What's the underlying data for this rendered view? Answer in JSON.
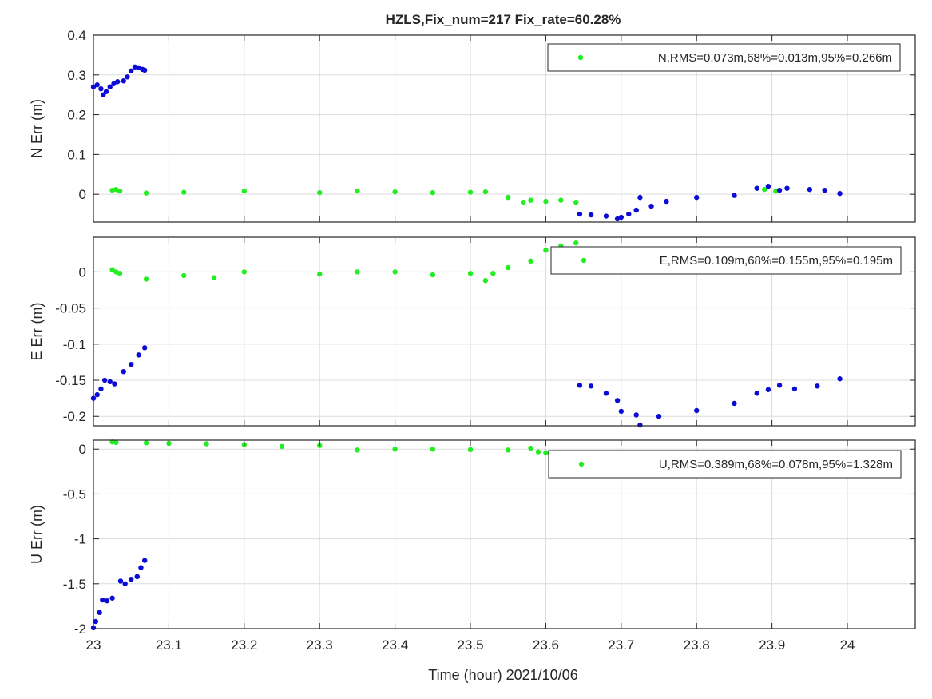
{
  "title": "HZLS,Fix_num=217 Fix_rate=60.28%",
  "xlabel": "Time (hour)  2021/10/06",
  "colors": {
    "fix": "#22ee22",
    "float": "#0b0bd6",
    "grid": "#dcdcdc",
    "axis": "#262626"
  },
  "chart_data": [
    {
      "type": "scatter",
      "name": "N",
      "ylabel": "N Err (m)",
      "legend": "N,RMS=0.073m,68%=0.013m,95%=0.266m",
      "legend_position": "top-right",
      "xlim": [
        23,
        24.09
      ],
      "ylim": [
        -0.07,
        0.4
      ],
      "yticks": [
        0,
        0.1,
        0.2,
        0.3,
        0.4
      ],
      "ytick_labels": [
        "0",
        "0.1",
        "0.2",
        "0.3",
        "0.4"
      ],
      "grid": true,
      "series": [
        {
          "status": "fix",
          "color": "#22ee22",
          "points": [
            [
              23.025,
              0.01
            ],
            [
              23.03,
              0.012
            ],
            [
              23.035,
              0.008
            ],
            [
              23.07,
              0.003
            ],
            [
              23.12,
              0.005
            ],
            [
              23.2,
              0.008
            ],
            [
              23.3,
              0.004
            ],
            [
              23.35,
              0.008
            ],
            [
              23.4,
              0.006
            ],
            [
              23.45,
              0.004
            ],
            [
              23.5,
              0.005
            ],
            [
              23.52,
              0.006
            ],
            [
              23.55,
              -0.008
            ],
            [
              23.57,
              -0.02
            ],
            [
              23.58,
              -0.015
            ],
            [
              23.6,
              -0.018
            ],
            [
              23.62,
              -0.015
            ],
            [
              23.64,
              -0.02
            ],
            [
              23.89,
              0.012
            ],
            [
              23.905,
              0.008
            ]
          ]
        },
        {
          "status": "float",
          "color": "#0b0bd6",
          "points": [
            [
              23.0,
              0.27
            ],
            [
              23.005,
              0.275
            ],
            [
              23.01,
              0.265
            ],
            [
              23.013,
              0.25
            ],
            [
              23.017,
              0.258
            ],
            [
              23.022,
              0.27
            ],
            [
              23.027,
              0.278
            ],
            [
              23.032,
              0.283
            ],
            [
              23.04,
              0.285
            ],
            [
              23.045,
              0.295
            ],
            [
              23.05,
              0.31
            ],
            [
              23.055,
              0.32
            ],
            [
              23.06,
              0.318
            ],
            [
              23.065,
              0.314
            ],
            [
              23.068,
              0.312
            ],
            [
              23.645,
              -0.05
            ],
            [
              23.66,
              -0.052
            ],
            [
              23.68,
              -0.055
            ],
            [
              23.695,
              -0.062
            ],
            [
              23.7,
              -0.058
            ],
            [
              23.71,
              -0.05
            ],
            [
              23.72,
              -0.04
            ],
            [
              23.725,
              -0.008
            ],
            [
              23.74,
              -0.03
            ],
            [
              23.76,
              -0.018
            ],
            [
              23.8,
              -0.008
            ],
            [
              23.85,
              -0.003
            ],
            [
              23.88,
              0.015
            ],
            [
              23.895,
              0.02
            ],
            [
              23.91,
              0.01
            ],
            [
              23.92,
              0.015
            ],
            [
              23.95,
              0.012
            ],
            [
              23.97,
              0.01
            ],
            [
              23.99,
              0.002
            ]
          ]
        }
      ]
    },
    {
      "type": "scatter",
      "name": "E",
      "ylabel": "E Err (m)",
      "legend": "E,RMS=0.109m,68%=0.155m,95%=0.195m",
      "legend_position": "top-right",
      "xlim": [
        23,
        24.09
      ],
      "ylim": [
        -0.213,
        0.048
      ],
      "yticks": [
        -0.2,
        -0.15,
        -0.1,
        -0.05,
        0
      ],
      "ytick_labels": [
        "-0.2",
        "-0.15",
        "-0.1",
        "-0.05",
        "0"
      ],
      "grid": true,
      "series": [
        {
          "status": "fix",
          "color": "#22ee22",
          "points": [
            [
              23.025,
              0.003
            ],
            [
              23.03,
              0.0
            ],
            [
              23.035,
              -0.002
            ],
            [
              23.07,
              -0.01
            ],
            [
              23.12,
              -0.005
            ],
            [
              23.16,
              -0.008
            ],
            [
              23.2,
              0.0
            ],
            [
              23.3,
              -0.003
            ],
            [
              23.35,
              0.0
            ],
            [
              23.4,
              0.0
            ],
            [
              23.45,
              -0.004
            ],
            [
              23.5,
              -0.002
            ],
            [
              23.52,
              -0.012
            ],
            [
              23.53,
              -0.002
            ],
            [
              23.55,
              0.006
            ],
            [
              23.58,
              0.015
            ],
            [
              23.6,
              0.03
            ],
            [
              23.62,
              0.036
            ],
            [
              23.64,
              0.04
            ]
          ]
        },
        {
          "status": "float",
          "color": "#0b0bd6",
          "points": [
            [
              23.0,
              -0.175
            ],
            [
              23.005,
              -0.17
            ],
            [
              23.01,
              -0.162
            ],
            [
              23.015,
              -0.15
            ],
            [
              23.022,
              -0.152
            ],
            [
              23.028,
              -0.155
            ],
            [
              23.04,
              -0.138
            ],
            [
              23.05,
              -0.128
            ],
            [
              23.06,
              -0.115
            ],
            [
              23.068,
              -0.105
            ],
            [
              23.645,
              -0.157
            ],
            [
              23.66,
              -0.158
            ],
            [
              23.68,
              -0.168
            ],
            [
              23.695,
              -0.178
            ],
            [
              23.7,
              -0.193
            ],
            [
              23.72,
              -0.198
            ],
            [
              23.725,
              -0.212
            ],
            [
              23.75,
              -0.2
            ],
            [
              23.8,
              -0.192
            ],
            [
              23.85,
              -0.182
            ],
            [
              23.88,
              -0.168
            ],
            [
              23.895,
              -0.163
            ],
            [
              23.91,
              -0.157
            ],
            [
              23.93,
              -0.162
            ],
            [
              23.96,
              -0.158
            ],
            [
              23.99,
              -0.148
            ]
          ]
        }
      ]
    },
    {
      "type": "scatter",
      "name": "U",
      "ylabel": "U Err (m)",
      "legend": "U,RMS=0.389m,68%=0.078m,95%=1.328m",
      "legend_position": "top-right",
      "xlim": [
        23,
        24.09
      ],
      "ylim": [
        -2,
        0.1
      ],
      "yticks": [
        -2,
        -1.5,
        -1,
        -0.5,
        0
      ],
      "ytick_labels": [
        "-2",
        "-1.5",
        "-1",
        "-0.5",
        "0"
      ],
      "grid": true,
      "series": [
        {
          "status": "fix",
          "color": "#22ee22",
          "points": [
            [
              23.025,
              0.08
            ],
            [
              23.03,
              0.075
            ],
            [
              23.07,
              0.07
            ],
            [
              23.1,
              0.065
            ],
            [
              23.15,
              0.06
            ],
            [
              23.2,
              0.05
            ],
            [
              23.25,
              0.03
            ],
            [
              23.3,
              0.04
            ],
            [
              23.35,
              -0.01
            ],
            [
              23.4,
              0.0
            ],
            [
              23.45,
              0.0
            ],
            [
              23.5,
              -0.005
            ],
            [
              23.55,
              -0.01
            ],
            [
              23.58,
              0.01
            ],
            [
              23.59,
              -0.03
            ],
            [
              23.6,
              -0.04
            ]
          ]
        },
        {
          "status": "float",
          "color": "#0b0bd6",
          "points": [
            [
              23.0,
              -1.99
            ],
            [
              23.003,
              -1.92
            ],
            [
              23.008,
              -1.82
            ],
            [
              23.012,
              -1.68
            ],
            [
              23.018,
              -1.69
            ],
            [
              23.025,
              -1.66
            ],
            [
              23.036,
              -1.47
            ],
            [
              23.042,
              -1.5
            ],
            [
              23.05,
              -1.45
            ],
            [
              23.058,
              -1.42
            ],
            [
              23.063,
              -1.32
            ],
            [
              23.068,
              -1.24
            ]
          ]
        }
      ]
    }
  ],
  "xticks": [
    23,
    23.1,
    23.2,
    23.3,
    23.4,
    23.5,
    23.6,
    23.7,
    23.8,
    23.9,
    24
  ],
  "xtick_labels": [
    "23",
    "23.1",
    "23.2",
    "23.3",
    "23.4",
    "23.5",
    "23.6",
    "23.7",
    "23.8",
    "23.9",
    "24"
  ]
}
